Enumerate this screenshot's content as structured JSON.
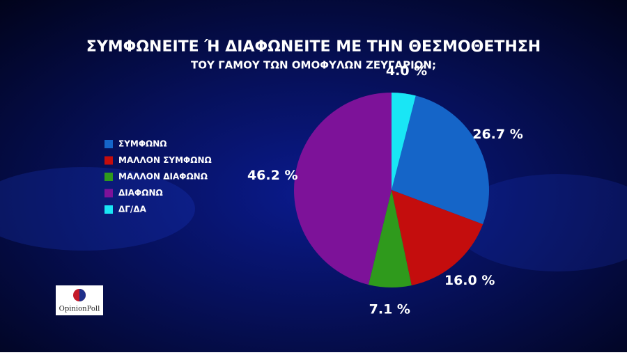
{
  "chart_data": {
    "type": "pie",
    "title": "ΣΥΜΦΩΝΕΙΤΕ Ή ΔΙΑΦΩΝΕΙΤΕ ΜΕ ΤΗΝ ΘΕΣΜΟΘΕΤΗΣΗ",
    "subtitle": "ΤΟΥ ΓΑΜΟΥ ΤΩΝ ΟΜΟΦΥΛΩΝ ΖΕΥΓΑΡΙΩΝ;",
    "categories": [
      "ΣΥΜΦΩΝΩ",
      "ΜΑΛΛΟΝ ΣΥΜΦΩΝΩ",
      "ΜΑΛΛΟΝ ΔΙΑΦΩΝΩ",
      "ΔΙΑΦΩΝΩ",
      "ΔΓ/ΔΑ"
    ],
    "values": [
      26.7,
      16.0,
      7.1,
      46.2,
      4.0
    ],
    "value_labels": [
      "26.7 %",
      "16.0 %",
      "7.1 %",
      "46.2 %",
      "4.0 %"
    ],
    "colors": [
      "#1565c8",
      "#c40d0d",
      "#2f9a1c",
      "#7d1299",
      "#19e6f5"
    ],
    "legend": "left"
  },
  "logo": "OpinionPoll"
}
